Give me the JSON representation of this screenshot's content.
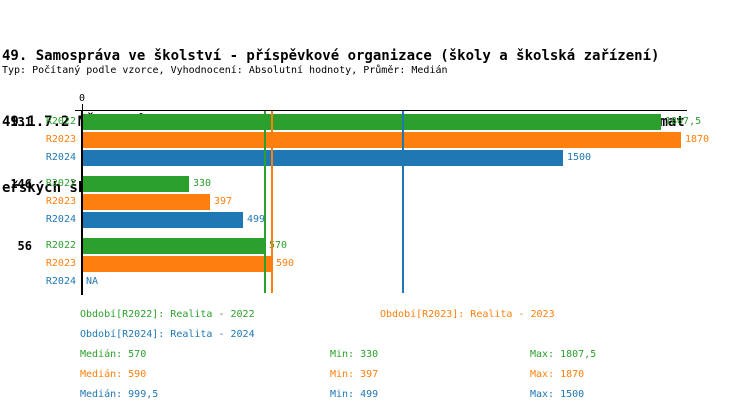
{
  "header": {
    "title_lines": [
      "49. Samospráva ve školství - příspěvkové organizace (školy a školská zařízení)",
      "49.1.7.2 MŠ - Průměr stanovených měsíčních úplat na jedno dítě ve zřizovaných mat",
      "eřských školách"
    ],
    "meta": "Typ: Počítaný podle vzorce, Vyhodnocení: Absolutní hodnoty, Průměr: Medián"
  },
  "chart_data": {
    "type": "bar",
    "orientation": "horizontal",
    "x_axis": {
      "origin_label": "0",
      "max": 1890,
      "grid": false
    },
    "legend_position": "bottom",
    "categories": [
      "131",
      "146",
      "56"
    ],
    "series": [
      {
        "name": "R2022",
        "color": "#2ca02c",
        "values": [
          1807.5,
          330,
          570
        ],
        "value_labels": [
          "1807,5",
          "330",
          "570"
        ],
        "median": 570,
        "legend_label": "Období[R2022]: Realita - 2022",
        "stats": {
          "median": "Medián: 570",
          "min": "Min: 330",
          "max": "Max: 1807,5"
        }
      },
      {
        "name": "R2023",
        "color": "#ff7f0e",
        "values": [
          1870,
          397,
          590
        ],
        "value_labels": [
          "1870",
          "397",
          "590"
        ],
        "median": 590,
        "legend_label": "Období[R2023]: Realita - 2023",
        "stats": {
          "median": "Medián: 590",
          "min": "Min: 397",
          "max": "Max: 1870"
        }
      },
      {
        "name": "R2024",
        "color": "#1f77b4",
        "values": [
          1500,
          499,
          null
        ],
        "value_labels": [
          "1500",
          "499",
          "NA"
        ],
        "median": 999.5,
        "legend_label": "Období[R2024]: Realita - 2024",
        "stats": {
          "median": "Medián: 999,5",
          "min": "Min: 499",
          "max": "Max: 1500"
        }
      }
    ]
  }
}
